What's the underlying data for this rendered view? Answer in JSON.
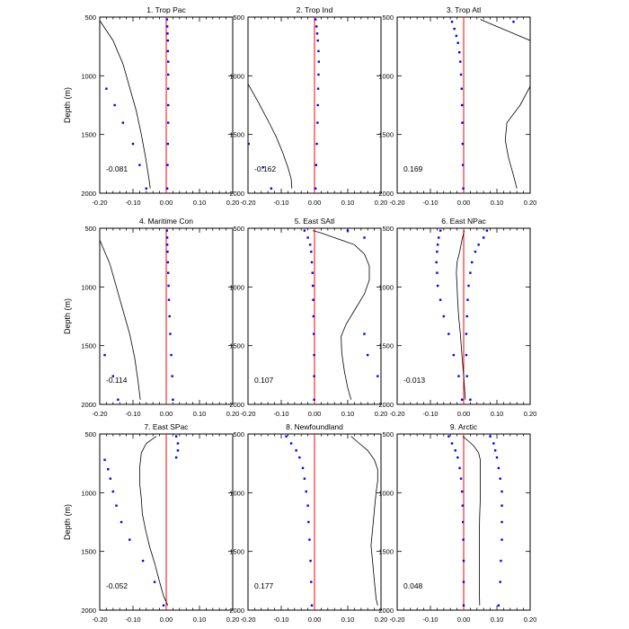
{
  "chart_data": {
    "type": "line",
    "xlim": [
      -0.2,
      0.2
    ],
    "ylim": [
      500,
      2000
    ],
    "ylabel": "Depth (m)",
    "xticks": [
      "-0.20",
      "-0.10",
      "0.00",
      "0.10",
      "0.20"
    ],
    "yticks": [
      "500",
      "1000",
      "1500",
      "2000"
    ],
    "grid": false,
    "colors": {
      "zero_line": "#ff0000",
      "dots": "#0000ff",
      "curve": "#000000"
    },
    "panels": [
      {
        "title": "1. Trop Pac",
        "value_label": "-0.081",
        "curve": [
          [
            -0.2,
            530
          ],
          [
            -0.16,
            700
          ],
          [
            -0.13,
            900
          ],
          [
            -0.11,
            1100
          ],
          [
            -0.09,
            1300
          ],
          [
            -0.075,
            1500
          ],
          [
            -0.062,
            1700
          ],
          [
            -0.052,
            1880
          ],
          [
            -0.048,
            1960
          ]
        ],
        "dots_left": [
          [
            -0.18,
            1110
          ],
          [
            -0.155,
            1250
          ],
          [
            -0.13,
            1400
          ],
          [
            -0.1,
            1580
          ],
          [
            -0.08,
            1760
          ],
          [
            -0.06,
            1960
          ]
        ],
        "dots_right": [
          [
            0.002,
            520
          ],
          [
            0.003,
            580
          ],
          [
            0.004,
            640
          ],
          [
            0.005,
            700
          ],
          [
            0.005,
            790
          ],
          [
            0.006,
            880
          ],
          [
            0.006,
            990
          ],
          [
            0.006,
            1110
          ],
          [
            0.006,
            1250
          ],
          [
            0.006,
            1400
          ],
          [
            0.005,
            1580
          ],
          [
            0.004,
            1760
          ],
          [
            0.003,
            1960
          ]
        ]
      },
      {
        "title": "2. Trop Ind",
        "value_label": "-0.162",
        "curve": [
          [
            -0.2,
            1070
          ],
          [
            -0.17,
            1220
          ],
          [
            -0.14,
            1380
          ],
          [
            -0.115,
            1520
          ],
          [
            -0.095,
            1660
          ],
          [
            -0.08,
            1780
          ],
          [
            -0.07,
            1880
          ],
          [
            -0.068,
            1960
          ]
        ],
        "dots_left": [
          [
            -0.198,
            1580
          ],
          [
            -0.155,
            1780
          ],
          [
            -0.13,
            1960
          ]
        ],
        "dots_right": [
          [
            0.003,
            520
          ],
          [
            0.006,
            580
          ],
          [
            0.008,
            640
          ],
          [
            0.01,
            700
          ],
          [
            0.012,
            790
          ],
          [
            0.013,
            880
          ],
          [
            0.012,
            990
          ],
          [
            0.011,
            1110
          ],
          [
            0.01,
            1250
          ],
          [
            0.009,
            1400
          ],
          [
            0.007,
            1580
          ],
          [
            0.005,
            1760
          ],
          [
            0.003,
            1960
          ]
        ]
      },
      {
        "title": "3. Trop Atl",
        "value_label": "0.169",
        "curve": [
          [
            0.05,
            520
          ],
          [
            0.1,
            580
          ],
          [
            0.15,
            640
          ],
          [
            0.2,
            700
          ],
          [
            0.2,
            1090
          ],
          [
            0.17,
            1250
          ],
          [
            0.13,
            1400
          ],
          [
            0.125,
            1550
          ],
          [
            0.135,
            1700
          ],
          [
            0.15,
            1850
          ],
          [
            0.16,
            1960
          ]
        ],
        "dots_left": [
          [
            0.15,
            540
          ]
        ],
        "dots_right": [
          [
            -0.035,
            540
          ],
          [
            -0.028,
            600
          ],
          [
            -0.022,
            660
          ],
          [
            -0.017,
            720
          ],
          [
            -0.013,
            800
          ],
          [
            -0.01,
            880
          ],
          [
            -0.008,
            990
          ],
          [
            -0.006,
            1110
          ],
          [
            -0.005,
            1250
          ],
          [
            -0.004,
            1400
          ],
          [
            -0.003,
            1580
          ],
          [
            -0.002,
            1760
          ],
          [
            -0.001,
            1960
          ]
        ]
      },
      {
        "title": "4. Maritime Con",
        "value_label": "-0.114",
        "curve": [
          [
            -0.2,
            600
          ],
          [
            -0.17,
            800
          ],
          [
            -0.15,
            1000
          ],
          [
            -0.13,
            1200
          ],
          [
            -0.11,
            1400
          ],
          [
            -0.095,
            1600
          ],
          [
            -0.085,
            1800
          ],
          [
            -0.078,
            1960
          ]
        ],
        "dots_left": [
          [
            -0.185,
            1580
          ],
          [
            -0.16,
            1760
          ],
          [
            -0.145,
            1960
          ]
        ],
        "dots_right": [
          [
            0.002,
            520
          ],
          [
            0.003,
            580
          ],
          [
            0.003,
            640
          ],
          [
            0.004,
            700
          ],
          [
            0.005,
            790
          ],
          [
            0.006,
            880
          ],
          [
            0.007,
            990
          ],
          [
            0.008,
            1110
          ],
          [
            0.01,
            1250
          ],
          [
            0.012,
            1400
          ],
          [
            0.015,
            1580
          ],
          [
            0.018,
            1760
          ],
          [
            0.02,
            1960
          ]
        ]
      },
      {
        "title": "5. East SAtl",
        "value_label": "0.107",
        "curve": [
          [
            -0.005,
            520
          ],
          [
            0.02,
            540
          ],
          [
            0.06,
            580
          ],
          [
            0.12,
            640
          ],
          [
            0.15,
            720
          ],
          [
            0.165,
            820
          ],
          [
            0.165,
            940
          ],
          [
            0.15,
            1060
          ],
          [
            0.12,
            1200
          ],
          [
            0.095,
            1320
          ],
          [
            0.08,
            1420
          ],
          [
            0.082,
            1560
          ],
          [
            0.09,
            1720
          ],
          [
            0.1,
            1860
          ],
          [
            0.11,
            1960
          ]
        ],
        "dots_left": [
          [
            -0.03,
            520
          ],
          [
            -0.02,
            580
          ],
          [
            -0.013,
            640
          ],
          [
            -0.01,
            700
          ],
          [
            -0.008,
            790
          ],
          [
            -0.006,
            880
          ],
          [
            -0.005,
            990
          ],
          [
            -0.004,
            1110
          ],
          [
            -0.003,
            1250
          ],
          [
            -0.002,
            1400
          ],
          [
            -0.001,
            1580
          ],
          [
            -0.001,
            1760
          ],
          [
            -0.001,
            1960
          ]
        ],
        "dots_right": [
          [
            0.1,
            520
          ],
          [
            0.15,
            580
          ],
          [
            0.15,
            1400
          ],
          [
            0.16,
            1580
          ],
          [
            0.19,
            1760
          ]
        ]
      },
      {
        "title": "6. East NPac",
        "value_label": "-0.013",
        "curve": [
          [
            0.002,
            520
          ],
          [
            -0.005,
            600
          ],
          [
            -0.012,
            700
          ],
          [
            -0.02,
            790
          ],
          [
            -0.022,
            880
          ],
          [
            -0.02,
            990
          ],
          [
            -0.018,
            1110
          ],
          [
            -0.015,
            1250
          ],
          [
            -0.01,
            1400
          ],
          [
            -0.005,
            1580
          ],
          [
            0.0,
            1760
          ],
          [
            0.005,
            1960
          ]
        ],
        "dots_left": [
          [
            -0.07,
            520
          ],
          [
            -0.075,
            580
          ],
          [
            -0.078,
            640
          ],
          [
            -0.08,
            700
          ],
          [
            -0.082,
            790
          ],
          [
            -0.08,
            880
          ],
          [
            -0.078,
            990
          ],
          [
            -0.07,
            1110
          ],
          [
            -0.06,
            1250
          ],
          [
            -0.045,
            1400
          ],
          [
            -0.03,
            1580
          ],
          [
            -0.015,
            1760
          ],
          [
            -0.005,
            1960
          ]
        ],
        "dots_right": [
          [
            0.07,
            520
          ],
          [
            0.06,
            580
          ],
          [
            0.045,
            640
          ],
          [
            0.035,
            700
          ],
          [
            0.025,
            790
          ],
          [
            0.02,
            880
          ],
          [
            0.015,
            990
          ],
          [
            0.012,
            1110
          ],
          [
            0.01,
            1250
          ],
          [
            0.008,
            1400
          ],
          [
            0.008,
            1580
          ],
          [
            0.01,
            1760
          ],
          [
            0.02,
            1960
          ]
        ]
      },
      {
        "title": "7. East SPac",
        "value_label": "-0.052",
        "curve": [
          [
            -0.03,
            520
          ],
          [
            -0.06,
            580
          ],
          [
            -0.075,
            660
          ],
          [
            -0.08,
            790
          ],
          [
            -0.08,
            920
          ],
          [
            -0.075,
            1050
          ],
          [
            -0.072,
            1180
          ],
          [
            -0.062,
            1320
          ],
          [
            -0.05,
            1460
          ],
          [
            -0.035,
            1600
          ],
          [
            -0.022,
            1740
          ],
          [
            -0.008,
            1880
          ],
          [
            0.005,
            1960
          ]
        ],
        "dots_left": [
          [
            -0.185,
            720
          ],
          [
            -0.175,
            800
          ],
          [
            -0.168,
            880
          ],
          [
            -0.16,
            990
          ],
          [
            -0.15,
            1110
          ],
          [
            -0.135,
            1250
          ],
          [
            -0.11,
            1400
          ],
          [
            -0.07,
            1580
          ],
          [
            -0.035,
            1760
          ],
          [
            -0.008,
            1960
          ]
        ],
        "dots_right": [
          [
            0.03,
            520
          ],
          [
            0.035,
            580
          ],
          [
            0.035,
            640
          ],
          [
            0.03,
            700
          ]
        ]
      },
      {
        "title": "8. Newfoundland",
        "value_label": "0.177",
        "curve": [
          [
            0.11,
            520
          ],
          [
            0.135,
            580
          ],
          [
            0.16,
            640
          ],
          [
            0.18,
            720
          ],
          [
            0.19,
            800
          ],
          [
            0.19,
            900
          ],
          [
            0.185,
            1000
          ],
          [
            0.18,
            1150
          ],
          [
            0.175,
            1300
          ],
          [
            0.17,
            1450
          ],
          [
            0.175,
            1600
          ],
          [
            0.18,
            1750
          ],
          [
            0.185,
            1900
          ],
          [
            0.19,
            1960
          ]
        ],
        "dots_left": [
          [
            -0.085,
            520
          ],
          [
            -0.07,
            580
          ],
          [
            -0.055,
            640
          ],
          [
            -0.045,
            700
          ],
          [
            -0.035,
            790
          ],
          [
            -0.03,
            880
          ],
          [
            -0.025,
            990
          ],
          [
            -0.02,
            1110
          ],
          [
            -0.018,
            1250
          ],
          [
            -0.015,
            1400
          ],
          [
            -0.012,
            1580
          ],
          [
            -0.01,
            1760
          ],
          [
            -0.008,
            1960
          ]
        ],
        "dots_right": []
      },
      {
        "title": "9. Arctic",
        "value_label": "0.048",
        "curve": [
          [
            -0.003,
            520
          ],
          [
            0.01,
            550
          ],
          [
            0.03,
            600
          ],
          [
            0.045,
            660
          ],
          [
            0.05,
            720
          ],
          [
            0.05,
            800
          ],
          [
            0.05,
            900
          ],
          [
            0.05,
            1050
          ],
          [
            0.048,
            1200
          ],
          [
            0.047,
            1350
          ],
          [
            0.047,
            1500
          ],
          [
            0.047,
            1650
          ],
          [
            0.047,
            1800
          ],
          [
            0.048,
            1960
          ]
        ],
        "dots_left": [
          [
            -0.045,
            520
          ],
          [
            -0.035,
            580
          ],
          [
            -0.025,
            640
          ],
          [
            -0.018,
            700
          ],
          [
            -0.012,
            790
          ],
          [
            -0.008,
            880
          ],
          [
            -0.005,
            990
          ],
          [
            -0.003,
            1110
          ],
          [
            -0.002,
            1250
          ],
          [
            -0.001,
            1400
          ],
          [
            0.0,
            1580
          ],
          [
            0.0,
            1760
          ],
          [
            0.0,
            1960
          ]
        ],
        "dots_right": [
          [
            0.08,
            520
          ],
          [
            0.09,
            580
          ],
          [
            0.095,
            640
          ],
          [
            0.1,
            700
          ],
          [
            0.105,
            790
          ],
          [
            0.11,
            880
          ],
          [
            0.115,
            990
          ],
          [
            0.115,
            1110
          ],
          [
            0.115,
            1250
          ],
          [
            0.115,
            1400
          ],
          [
            0.112,
            1580
          ],
          [
            0.11,
            1760
          ],
          [
            0.105,
            1960
          ]
        ]
      }
    ]
  }
}
